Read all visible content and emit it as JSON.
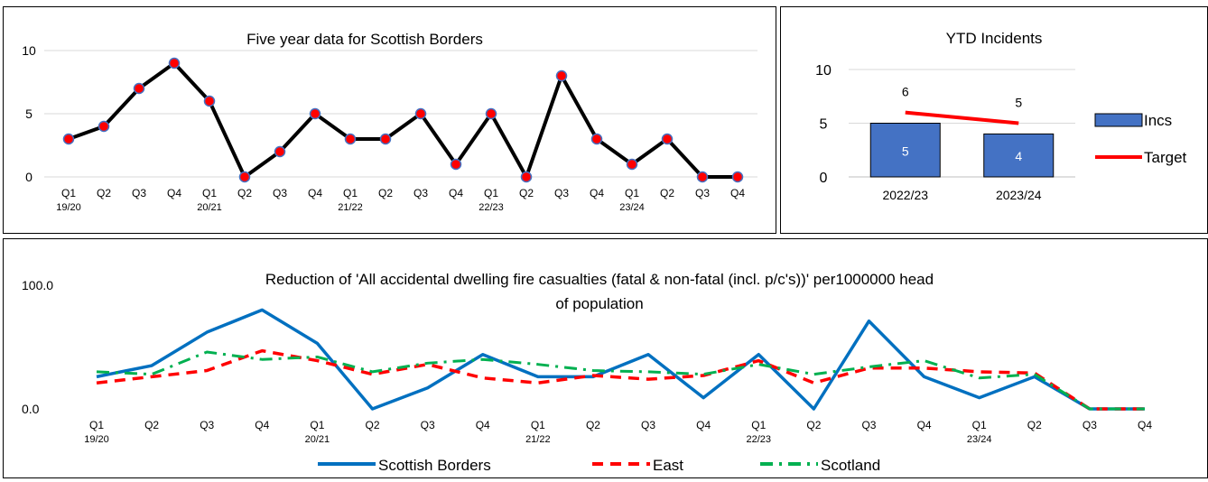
{
  "chart_data": [
    {
      "type": "line",
      "title": "Five year data for Scottish Borders",
      "categories": [
        "Q1",
        "Q2",
        "Q3",
        "Q4",
        "Q1",
        "Q2",
        "Q3",
        "Q4",
        "Q1",
        "Q2",
        "Q3",
        "Q4",
        "Q1",
        "Q2",
        "Q3",
        "Q4",
        "Q1",
        "Q2",
        "Q3",
        "Q4"
      ],
      "year_labels": [
        "19/20",
        "20/21",
        "21/22",
        "22/23",
        "23/24"
      ],
      "series": [
        {
          "values": [
            3,
            4,
            7,
            9,
            6,
            0,
            2,
            5,
            3,
            3,
            5,
            1,
            5,
            0,
            8,
            3,
            1,
            3,
            0,
            0
          ]
        }
      ],
      "ylim": [
        0,
        10
      ],
      "yticks": [
        "0",
        "5",
        "10"
      ],
      "grid": true,
      "colors": {
        "line": "#000000",
        "marker_fill": "#ff0000",
        "marker_edge": "#4472c4",
        "grid": "#d9d9d9"
      }
    },
    {
      "type": "bar",
      "title": "YTD Incidents",
      "categories": [
        "2022/23",
        "2023/24"
      ],
      "series": [
        {
          "name": "Incs",
          "values": [
            5,
            4
          ]
        },
        {
          "name": "Target",
          "type": "line",
          "values": [
            6,
            5
          ]
        }
      ],
      "ylim": [
        0,
        10
      ],
      "yticks": [
        "0",
        "5",
        "10"
      ],
      "legend": "right",
      "grid": true,
      "colors": {
        "bar": "#4472c4",
        "target": "#ff0000"
      }
    },
    {
      "type": "line",
      "title": "Reduction of 'All accidental dwelling fire casualties (fatal & non-fatal (incl. p/c's))' per1000000 head of population",
      "categories": [
        "Q1",
        "Q2",
        "Q3",
        "Q4",
        "Q1",
        "Q2",
        "Q3",
        "Q4",
        "Q1",
        "Q2",
        "Q3",
        "Q4",
        "Q1",
        "Q2",
        "Q3",
        "Q4",
        "Q1",
        "Q2",
        "Q3",
        "Q4"
      ],
      "year_labels": [
        "19/20",
        "20/21",
        "21/22",
        "22/23",
        "23/24"
      ],
      "series": [
        {
          "name": "Scottish Borders",
          "values": [
            26,
            35,
            62,
            80,
            53,
            0,
            17,
            44,
            26,
            26,
            44,
            9,
            44,
            0,
            71,
            26,
            9,
            26,
            0,
            0
          ]
        },
        {
          "name": "East",
          "values": [
            21,
            26,
            31,
            47,
            39,
            28,
            36,
            25,
            21,
            27,
            24,
            27,
            39,
            21,
            33,
            33,
            30,
            29,
            0,
            0
          ]
        },
        {
          "name": "Scotland",
          "values": [
            30,
            28,
            46,
            40,
            42,
            30,
            37,
            40,
            36,
            31,
            30,
            28,
            36,
            28,
            34,
            39,
            25,
            28,
            0,
            0
          ]
        }
      ],
      "ylim": [
        0,
        100
      ],
      "yticks": [
        "0.0",
        "100.0"
      ],
      "legend": "bottom",
      "grid": false,
      "colors": {
        "Scottish Borders": "#0070c0",
        "East": "#ff0000",
        "Scotland": "#00b050"
      }
    }
  ]
}
